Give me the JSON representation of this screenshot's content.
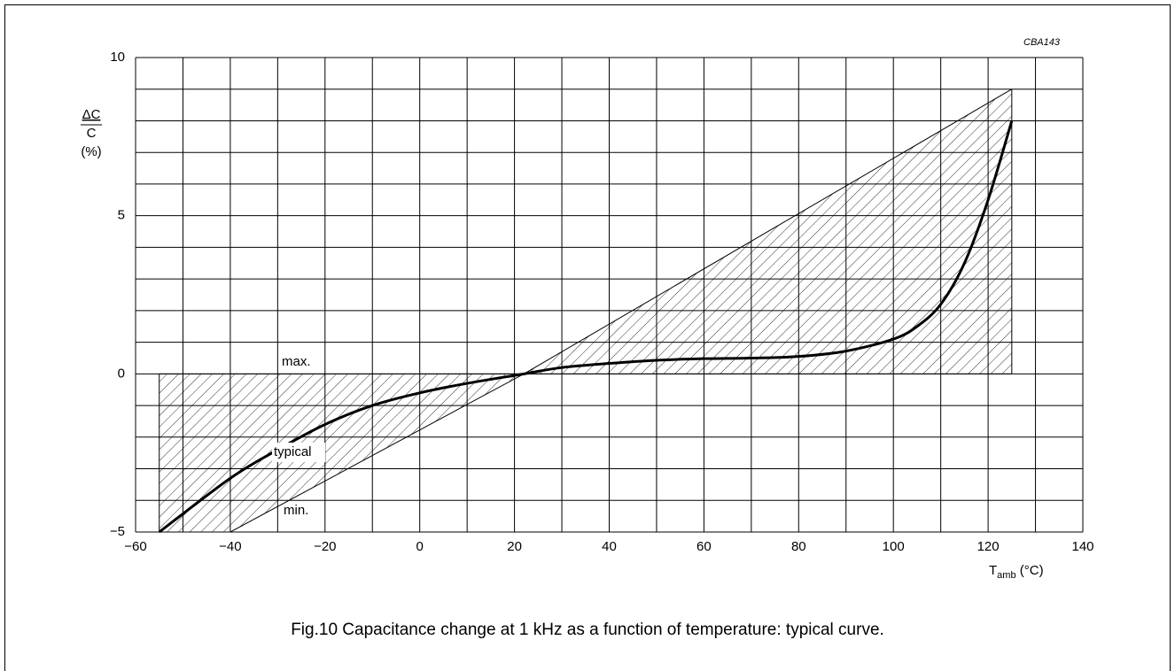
{
  "chart_data": {
    "type": "line",
    "code": "CBA143",
    "ylabel": [
      "ΔC",
      "C",
      "(%)"
    ],
    "xlabel": [
      "T",
      "amb",
      " (°C)"
    ],
    "caption": "Fig.10  Capacitance change at 1 kHz as a function of temperature: typical curve.",
    "xlim": [
      -60,
      140
    ],
    "ylim": [
      -5,
      10
    ],
    "xticks": [
      {
        "value": -60,
        "label": "−60"
      },
      {
        "value": -40,
        "label": "−40"
      },
      {
        "value": -20,
        "label": "−20"
      },
      0,
      20,
      40,
      60,
      80,
      100,
      120,
      140
    ],
    "yticks": [
      {
        "value": -5,
        "label": "−5"
      },
      0,
      5,
      10
    ],
    "xgrid": [
      -60,
      -50,
      -40,
      -30,
      -20,
      -10,
      0,
      10,
      20,
      30,
      40,
      50,
      60,
      70,
      80,
      90,
      100,
      110,
      120,
      130,
      140
    ],
    "ygrid": [
      -5,
      -4,
      -3,
      -2,
      -1,
      0,
      1,
      2,
      3,
      4,
      5,
      6,
      7,
      8,
      9,
      10
    ],
    "series": [
      {
        "name": "max.",
        "color": "#000000",
        "x": [
          -55,
          22,
          125
        ],
        "values": [
          0,
          0,
          9
        ]
      },
      {
        "name": "min.",
        "color": "#000000",
        "x": [
          -55,
          -40,
          22,
          125
        ],
        "values": [
          -5,
          -5,
          0,
          0
        ]
      },
      {
        "name": "typical",
        "color": "#000000",
        "x": [
          -55,
          -40,
          -30,
          -20,
          -10,
          0,
          10,
          22,
          30,
          40,
          50,
          60,
          70,
          80,
          90,
          100,
          105,
          110,
          115,
          120,
          125
        ],
        "values": [
          -5,
          -3.3,
          -2.4,
          -1.6,
          -1.0,
          -0.6,
          -0.3,
          0,
          0.2,
          0.33,
          0.43,
          0.48,
          0.5,
          0.55,
          0.72,
          1.1,
          1.5,
          2.2,
          3.5,
          5.5,
          8
        ]
      }
    ]
  }
}
